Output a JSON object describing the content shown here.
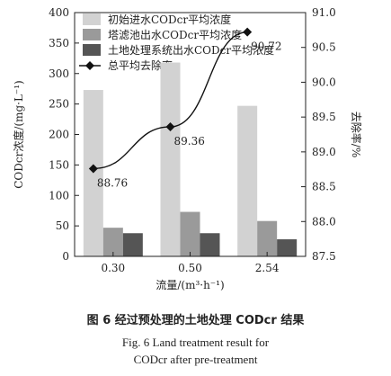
{
  "chart_data": {
    "type": "bar",
    "categories": [
      "0.30",
      "0.50",
      "2.54"
    ],
    "xlabel": "流量/(m³·h⁻¹)",
    "ylabel": "CODcr浓度/(mg·L⁻¹)",
    "y2label": "去除率/%",
    "ylim": [
      0,
      400
    ],
    "yticks": [
      "0",
      "50",
      "100",
      "150",
      "200",
      "250",
      "300",
      "350",
      "400"
    ],
    "y2lim": [
      87.5,
      91.0
    ],
    "y2ticks": [
      "87.5",
      "88.0",
      "88.5",
      "89.0",
      "89.5",
      "90.0",
      "90.5",
      "91.0"
    ],
    "series": [
      {
        "name": "初始进水CODcr平均浓度",
        "kind": "bar",
        "color": "#d2d2d2",
        "values": [
          273,
          318,
          247
        ]
      },
      {
        "name": "塔滤池出水CODcr平均浓度",
        "kind": "bar",
        "color": "#9a9a9a",
        "values": [
          47,
          73,
          58
        ]
      },
      {
        "name": "土地处理系统出水CODcr平均浓度",
        "kind": "bar",
        "color": "#555555",
        "values": [
          38,
          38,
          28
        ]
      },
      {
        "name": "总平均去除率",
        "kind": "line",
        "axis": "right",
        "color": "#111111",
        "values": [
          88.76,
          89.36,
          90.72
        ],
        "labels": [
          "88.76",
          "89.36",
          "90.72"
        ]
      }
    ],
    "legend": "top-left"
  },
  "caption": {
    "zh": "图 6 经过预处理的土地处理 CODcr 结果",
    "en_line1": "Fig. 6 Land treatment result for",
    "en_line2": "CODcr after pre-treatment"
  }
}
